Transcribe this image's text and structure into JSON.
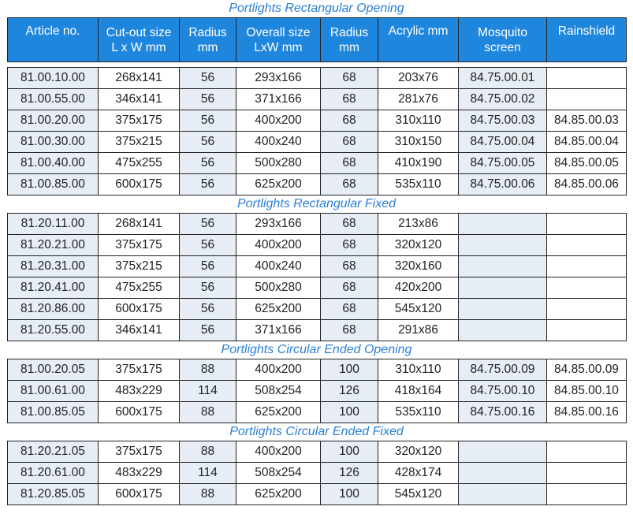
{
  "headers": [
    "Article no.",
    "Cut-out size L x W mm",
    "Radius mm",
    "Overall size LxW mm",
    "Radius mm",
    "Acrylic mm",
    "Mosquito screen",
    "Rainshield"
  ],
  "headers_lines": [
    [
      "Article no."
    ],
    [
      "Cut-out size",
      "L x W mm"
    ],
    [
      "Radius",
      "mm"
    ],
    [
      "Overall size",
      "LxW mm"
    ],
    [
      "Radius",
      "mm"
    ],
    [
      "Acrylic mm"
    ],
    [
      "Mosquito",
      "screen"
    ],
    [
      "Rainshield"
    ]
  ],
  "sections": [
    {
      "title": "Portlights Rectangular Opening",
      "rows": [
        [
          "81.00.10.00",
          "268x141",
          "56",
          "293x166",
          "68",
          "203x76",
          "84.75.00.01",
          ""
        ],
        [
          "81.00.55.00",
          "346x141",
          "56",
          "371x166",
          "68",
          "281x76",
          "84.75.00.02",
          ""
        ],
        [
          "81.00.20.00",
          "375x175",
          "56",
          "400x200",
          "68",
          "310x110",
          "84.75.00.03",
          "84.85.00.03"
        ],
        [
          "81.00.30.00",
          "375x215",
          "56",
          "400x240",
          "68",
          "310x150",
          "84.75.00.04",
          "84.85.00.04"
        ],
        [
          "81.00.40.00",
          "475x255",
          "56",
          "500x280",
          "68",
          "410x190",
          "84.75.00.05",
          "84.85.00.05"
        ],
        [
          "81.00.85.00",
          "600x175",
          "56",
          "625x200",
          "68",
          "535x110",
          "84.75.00.06",
          "84.85.00.06"
        ]
      ]
    },
    {
      "title": "Portlights Rectangular Fixed",
      "rows": [
        [
          "81.20.11.00",
          "268x141",
          "56",
          "293x166",
          "68",
          "213x86",
          "",
          ""
        ],
        [
          "81.20.21.00",
          "375x175",
          "56",
          "400x200",
          "68",
          "320x120",
          "",
          ""
        ],
        [
          "81.20.31.00",
          "375x215",
          "56",
          "400x240",
          "68",
          "320x160",
          "",
          ""
        ],
        [
          "81.20.41.00",
          "475x255",
          "56",
          "500x280",
          "68",
          "420x200",
          "",
          ""
        ],
        [
          "81.20.86.00",
          "600x175",
          "56",
          "625x200",
          "68",
          "545x120",
          "",
          ""
        ],
        [
          "81.20.55.00",
          "346x141",
          "56",
          "371x166",
          "68",
          "291x86",
          "",
          ""
        ]
      ]
    },
    {
      "title": "Portlights Circular Ended Opening",
      "rows": [
        [
          "81.00.20.05",
          "375x175",
          "88",
          "400x200",
          "100",
          "310x110",
          "84.75.00.09",
          "84.85.00.09"
        ],
        [
          "81.00.61.00",
          "483x229",
          "114",
          "508x254",
          "126",
          "418x164",
          "84.75.00.10",
          "84.85.00.10"
        ],
        [
          "81.00.85.05",
          "600x175",
          "88",
          "625x200",
          "100",
          "535x110",
          "84.75.00.16",
          "84.85.00.16"
        ]
      ]
    },
    {
      "title": "Portlights Circular Ended Fixed",
      "rows": [
        [
          "81.20.21.05",
          "375x175",
          "88",
          "400x200",
          "100",
          "320x120",
          "",
          ""
        ],
        [
          "81.20.61.00",
          "483x229",
          "114",
          "508x254",
          "126",
          "428x174",
          "",
          ""
        ],
        [
          "81.20.85.05",
          "600x175",
          "88",
          "625x200",
          "100",
          "545x120",
          "",
          ""
        ]
      ]
    }
  ]
}
